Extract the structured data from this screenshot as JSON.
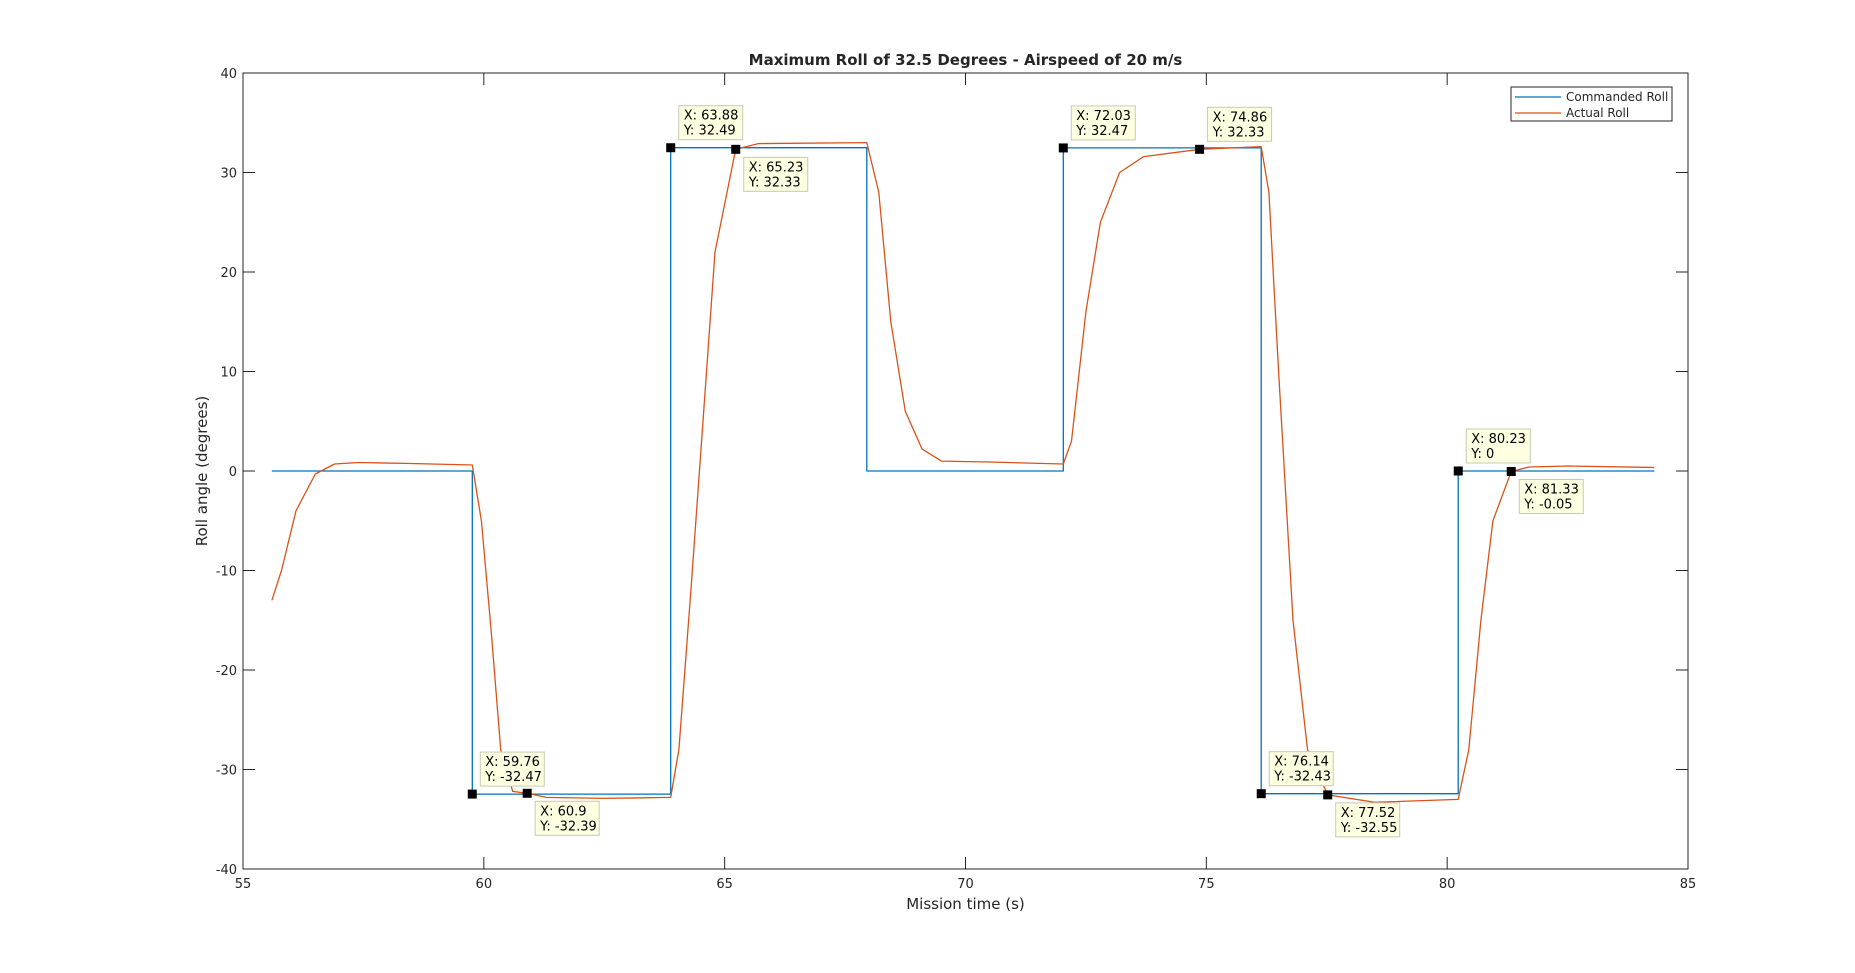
{
  "chart_data": {
    "type": "line",
    "title": "Maximum Roll of 32.5 Degrees - Airspeed of 20 m/s",
    "xlabel": "Mission time (s)",
    "ylabel": "Roll angle (degrees)",
    "xlim": [
      55,
      85
    ],
    "ylim": [
      -40,
      40
    ],
    "xticks": [
      55,
      60,
      65,
      70,
      75,
      80,
      85
    ],
    "yticks": [
      -40,
      -30,
      -20,
      -10,
      0,
      10,
      20,
      30,
      40
    ],
    "grid": false,
    "legend_position": "top-right",
    "series": [
      {
        "name": "Commanded Roll",
        "color": "#0072BD",
        "x": [
          55.6,
          59.76,
          59.76,
          63.88,
          63.88,
          67.95,
          67.95,
          72.03,
          72.03,
          76.14,
          76.14,
          80.23,
          80.23,
          84.3
        ],
        "y": [
          0,
          0,
          -32.47,
          -32.47,
          32.49,
          32.49,
          0,
          0,
          32.47,
          32.47,
          -32.43,
          -32.43,
          0,
          0
        ]
      },
      {
        "name": "Actual Roll",
        "color": "#D95319",
        "x": [
          55.6,
          55.8,
          56.1,
          56.5,
          56.9,
          57.4,
          58.5,
          59.76,
          59.95,
          60.15,
          60.35,
          60.6,
          60.9,
          61.3,
          62.5,
          63.88,
          64.05,
          64.3,
          64.55,
          64.8,
          65.23,
          65.7,
          67.95,
          68.2,
          68.45,
          68.75,
          69.1,
          69.5,
          70.5,
          72.03,
          72.2,
          72.5,
          72.8,
          73.2,
          73.7,
          74.86,
          76.14,
          76.3,
          76.5,
          76.8,
          77.1,
          77.52,
          78.5,
          80.23,
          80.45,
          80.7,
          80.95,
          81.33,
          81.7,
          82.5,
          84.3
        ],
        "y": [
          -13,
          -10,
          -4,
          -0.3,
          0.7,
          0.85,
          0.75,
          0.6,
          -5,
          -16,
          -28,
          -32.2,
          -32.39,
          -32.8,
          -32.9,
          -32.8,
          -28,
          -12,
          5,
          22,
          32.33,
          32.9,
          33.0,
          28,
          15,
          6,
          2.2,
          1.0,
          0.9,
          0.7,
          3,
          16,
          25,
          30,
          31.6,
          32.33,
          32.6,
          28,
          10,
          -15,
          -28,
          -32.55,
          -33.3,
          -33.0,
          -28,
          -15,
          -5,
          -0.05,
          0.4,
          0.5,
          0.35
        ]
      }
    ],
    "datatips": [
      {
        "x_label": "X: 59.76",
        "y_label": "Y: -32.47",
        "x": 59.76,
        "y": -32.47,
        "placement": "above"
      },
      {
        "x_label": "X: 60.9",
        "y_label": "Y: -32.39",
        "x": 60.9,
        "y": -32.39,
        "placement": "below"
      },
      {
        "x_label": "X: 63.88",
        "y_label": "Y: 32.49",
        "x": 63.88,
        "y": 32.49,
        "placement": "above"
      },
      {
        "x_label": "X: 65.23",
        "y_label": "Y: 32.33",
        "x": 65.23,
        "y": 32.33,
        "placement": "below"
      },
      {
        "x_label": "X: 72.03",
        "y_label": "Y: 32.47",
        "x": 72.03,
        "y": 32.47,
        "placement": "above"
      },
      {
        "x_label": "X: 74.86",
        "y_label": "Y: 32.33",
        "x": 74.86,
        "y": 32.33,
        "placement": "above"
      },
      {
        "x_label": "X: 76.14",
        "y_label": "Y: -32.43",
        "x": 76.14,
        "y": -32.43,
        "placement": "above"
      },
      {
        "x_label": "X: 77.52",
        "y_label": "Y: -32.55",
        "x": 77.52,
        "y": -32.55,
        "placement": "below"
      },
      {
        "x_label": "X: 80.23",
        "y_label": "Y: 0",
        "x": 80.23,
        "y": 0,
        "placement": "above"
      },
      {
        "x_label": "X: 81.33",
        "y_label": "Y: -0.05",
        "x": 81.33,
        "y": -0.05,
        "placement": "below"
      }
    ]
  }
}
